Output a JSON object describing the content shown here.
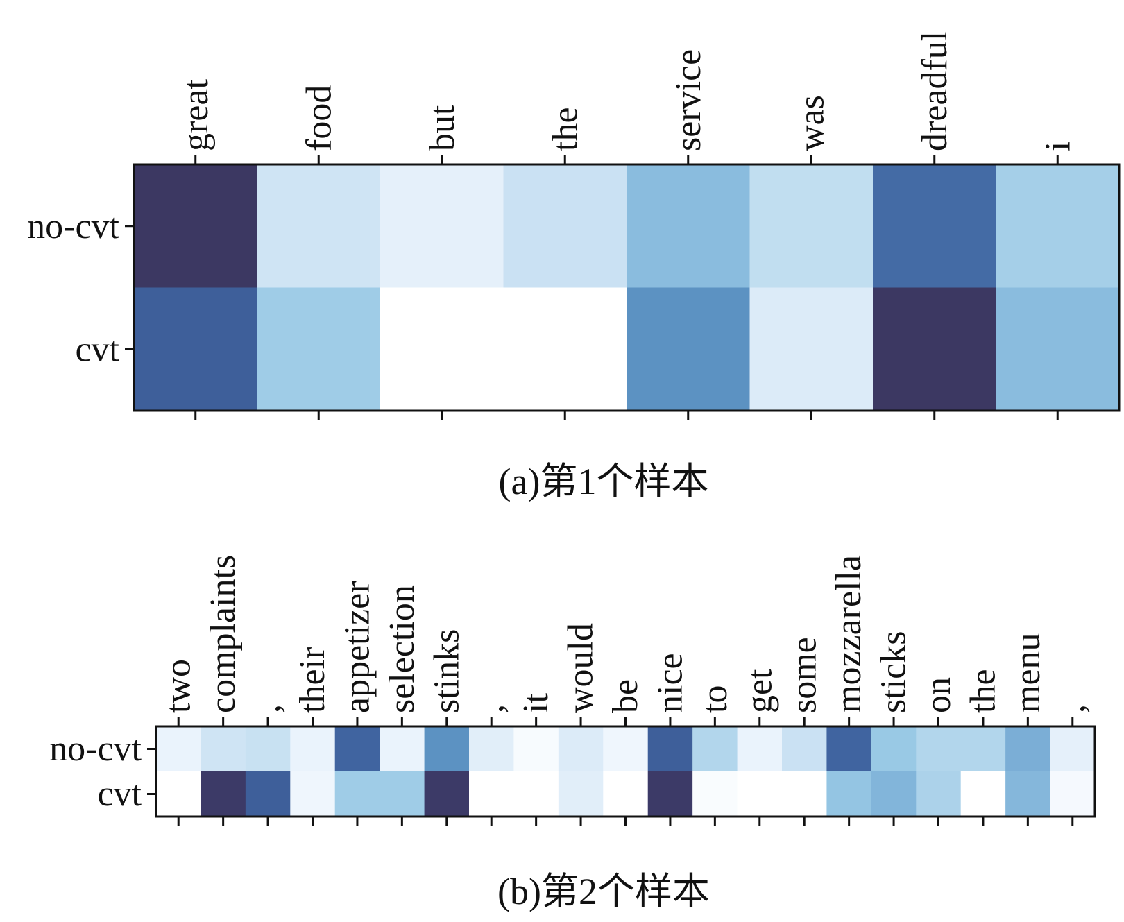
{
  "chart_data": [
    {
      "type": "heatmap",
      "caption": "(a)第1个样本",
      "rows": [
        "no-cvt",
        "cvt"
      ],
      "columns": [
        "great",
        "food",
        "but",
        "the",
        "service",
        "was",
        "dreadful",
        "i"
      ],
      "values": [
        [
          0.97,
          0.22,
          0.12,
          0.25,
          0.5,
          0.3,
          0.78,
          0.4
        ],
        [
          0.82,
          0.42,
          0.0,
          0.0,
          0.66,
          0.16,
          0.97,
          0.5
        ]
      ],
      "colormap": "Blues (light to dark purple-navy)",
      "colorbar": false
    },
    {
      "type": "heatmap",
      "caption": "(b)第2个样本",
      "rows": [
        "no-cvt",
        "cvt"
      ],
      "columns": [
        "two",
        "complaints",
        ",",
        "their",
        "appetizer",
        "selection",
        "stinks",
        ",",
        "it",
        "would",
        "be",
        "nice",
        "to",
        "get",
        "some",
        "mozzarella",
        "sticks",
        "on",
        "the",
        "menu",
        ","
      ],
      "values": [
        [
          0.1,
          0.22,
          0.26,
          0.1,
          0.8,
          0.1,
          0.66,
          0.14,
          0.04,
          0.16,
          0.08,
          0.82,
          0.36,
          0.1,
          0.25,
          0.8,
          0.44,
          0.36,
          0.36,
          0.56,
          0.12
        ],
        [
          0.0,
          0.96,
          0.82,
          0.08,
          0.42,
          0.42,
          0.96,
          0.0,
          0.0,
          0.14,
          0.0,
          0.96,
          0.03,
          0.0,
          0.0,
          0.46,
          0.53,
          0.38,
          0.0,
          0.52,
          0.05
        ]
      ],
      "colormap": "Blues (light to dark purple-navy)",
      "colorbar": false
    }
  ]
}
